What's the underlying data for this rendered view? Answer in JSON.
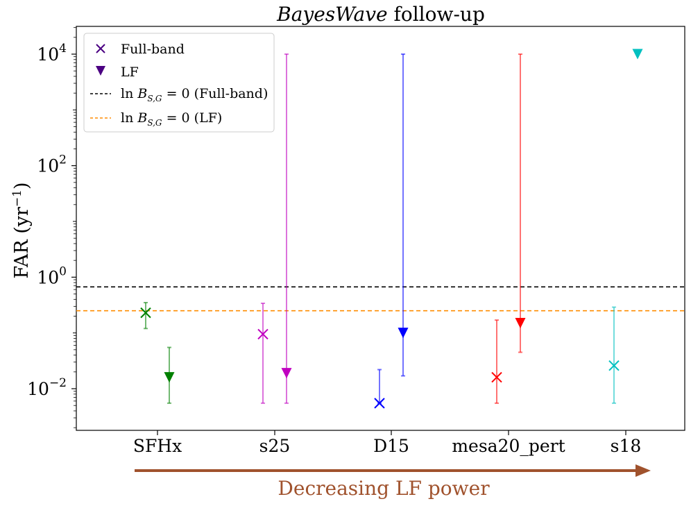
{
  "chart_data": {
    "type": "scatter",
    "title_italic": "BayesWave",
    "title_rest": " follow-up",
    "ylabel_main": "FAR (yr",
    "ylabel_sup": "−1",
    "ylabel_close": ")",
    "yscale": "log",
    "ylim": [
      0.0018,
      30000
    ],
    "yticks": [
      {
        "value": 0.01,
        "base": "10",
        "exp": "−2"
      },
      {
        "value": 1,
        "base": "10",
        "exp": "0"
      },
      {
        "value": 100,
        "base": "10",
        "exp": "2"
      },
      {
        "value": 10000,
        "base": "10",
        "exp": "4"
      }
    ],
    "categories": [
      "SFHx",
      "s25",
      "D15",
      "mesa20_pert",
      "s18"
    ],
    "series": [
      {
        "name": "Full-band",
        "marker": "x",
        "points": [
          {
            "category": "SFHx",
            "color": "#008000",
            "y": 0.23,
            "low": 0.12,
            "high": 0.35
          },
          {
            "category": "s25",
            "color": "#c000c0",
            "y": 0.095,
            "low": 0.0055,
            "high": 0.34
          },
          {
            "category": "D15",
            "color": "#0000ff",
            "y": 0.0055,
            "low": 0.0055,
            "high": 0.022
          },
          {
            "category": "mesa20_pert",
            "color": "#ff0000",
            "y": 0.016,
            "low": 0.0055,
            "high": 0.17
          },
          {
            "category": "s18",
            "color": "#00c0c0",
            "y": 0.026,
            "low": 0.0055,
            "high": 0.29
          }
        ]
      },
      {
        "name": "LF",
        "marker": "triangle-down",
        "points": [
          {
            "category": "SFHx",
            "color": "#008000",
            "y": 0.016,
            "low": 0.0055,
            "high": 0.055
          },
          {
            "category": "s25",
            "color": "#c000c0",
            "y": 0.019,
            "low": 0.0055,
            "high": 10000
          },
          {
            "category": "D15",
            "color": "#0000ff",
            "y": 0.1,
            "low": 0.017,
            "high": 10000
          },
          {
            "category": "mesa20_pert",
            "color": "#ff0000",
            "y": 0.15,
            "low": 0.045,
            "high": 10000
          },
          {
            "category": "s18",
            "color": "#00c0c0",
            "y": 10000,
            "low": null,
            "high": null
          }
        ]
      }
    ],
    "hlines": [
      {
        "label_prefix": "ln ",
        "label_math": "B",
        "label_sub": "S,G",
        "label_rest": " = 0 (Full-band)",
        "y": 0.67,
        "color": "#000000",
        "style": "dashed"
      },
      {
        "label_prefix": "ln ",
        "label_math": "B",
        "label_sub": "S,G",
        "label_rest": " = 0 (LF)",
        "y": 0.25,
        "color": "#ff8c00",
        "style": "dashed"
      }
    ],
    "legend": {
      "placement": "top-left",
      "marker_color": "#4b0082",
      "entries": [
        "Full-band",
        "LF"
      ]
    },
    "annotation": {
      "text": "Decreasing LF power",
      "color": "#a0522d"
    },
    "grid": false
  }
}
